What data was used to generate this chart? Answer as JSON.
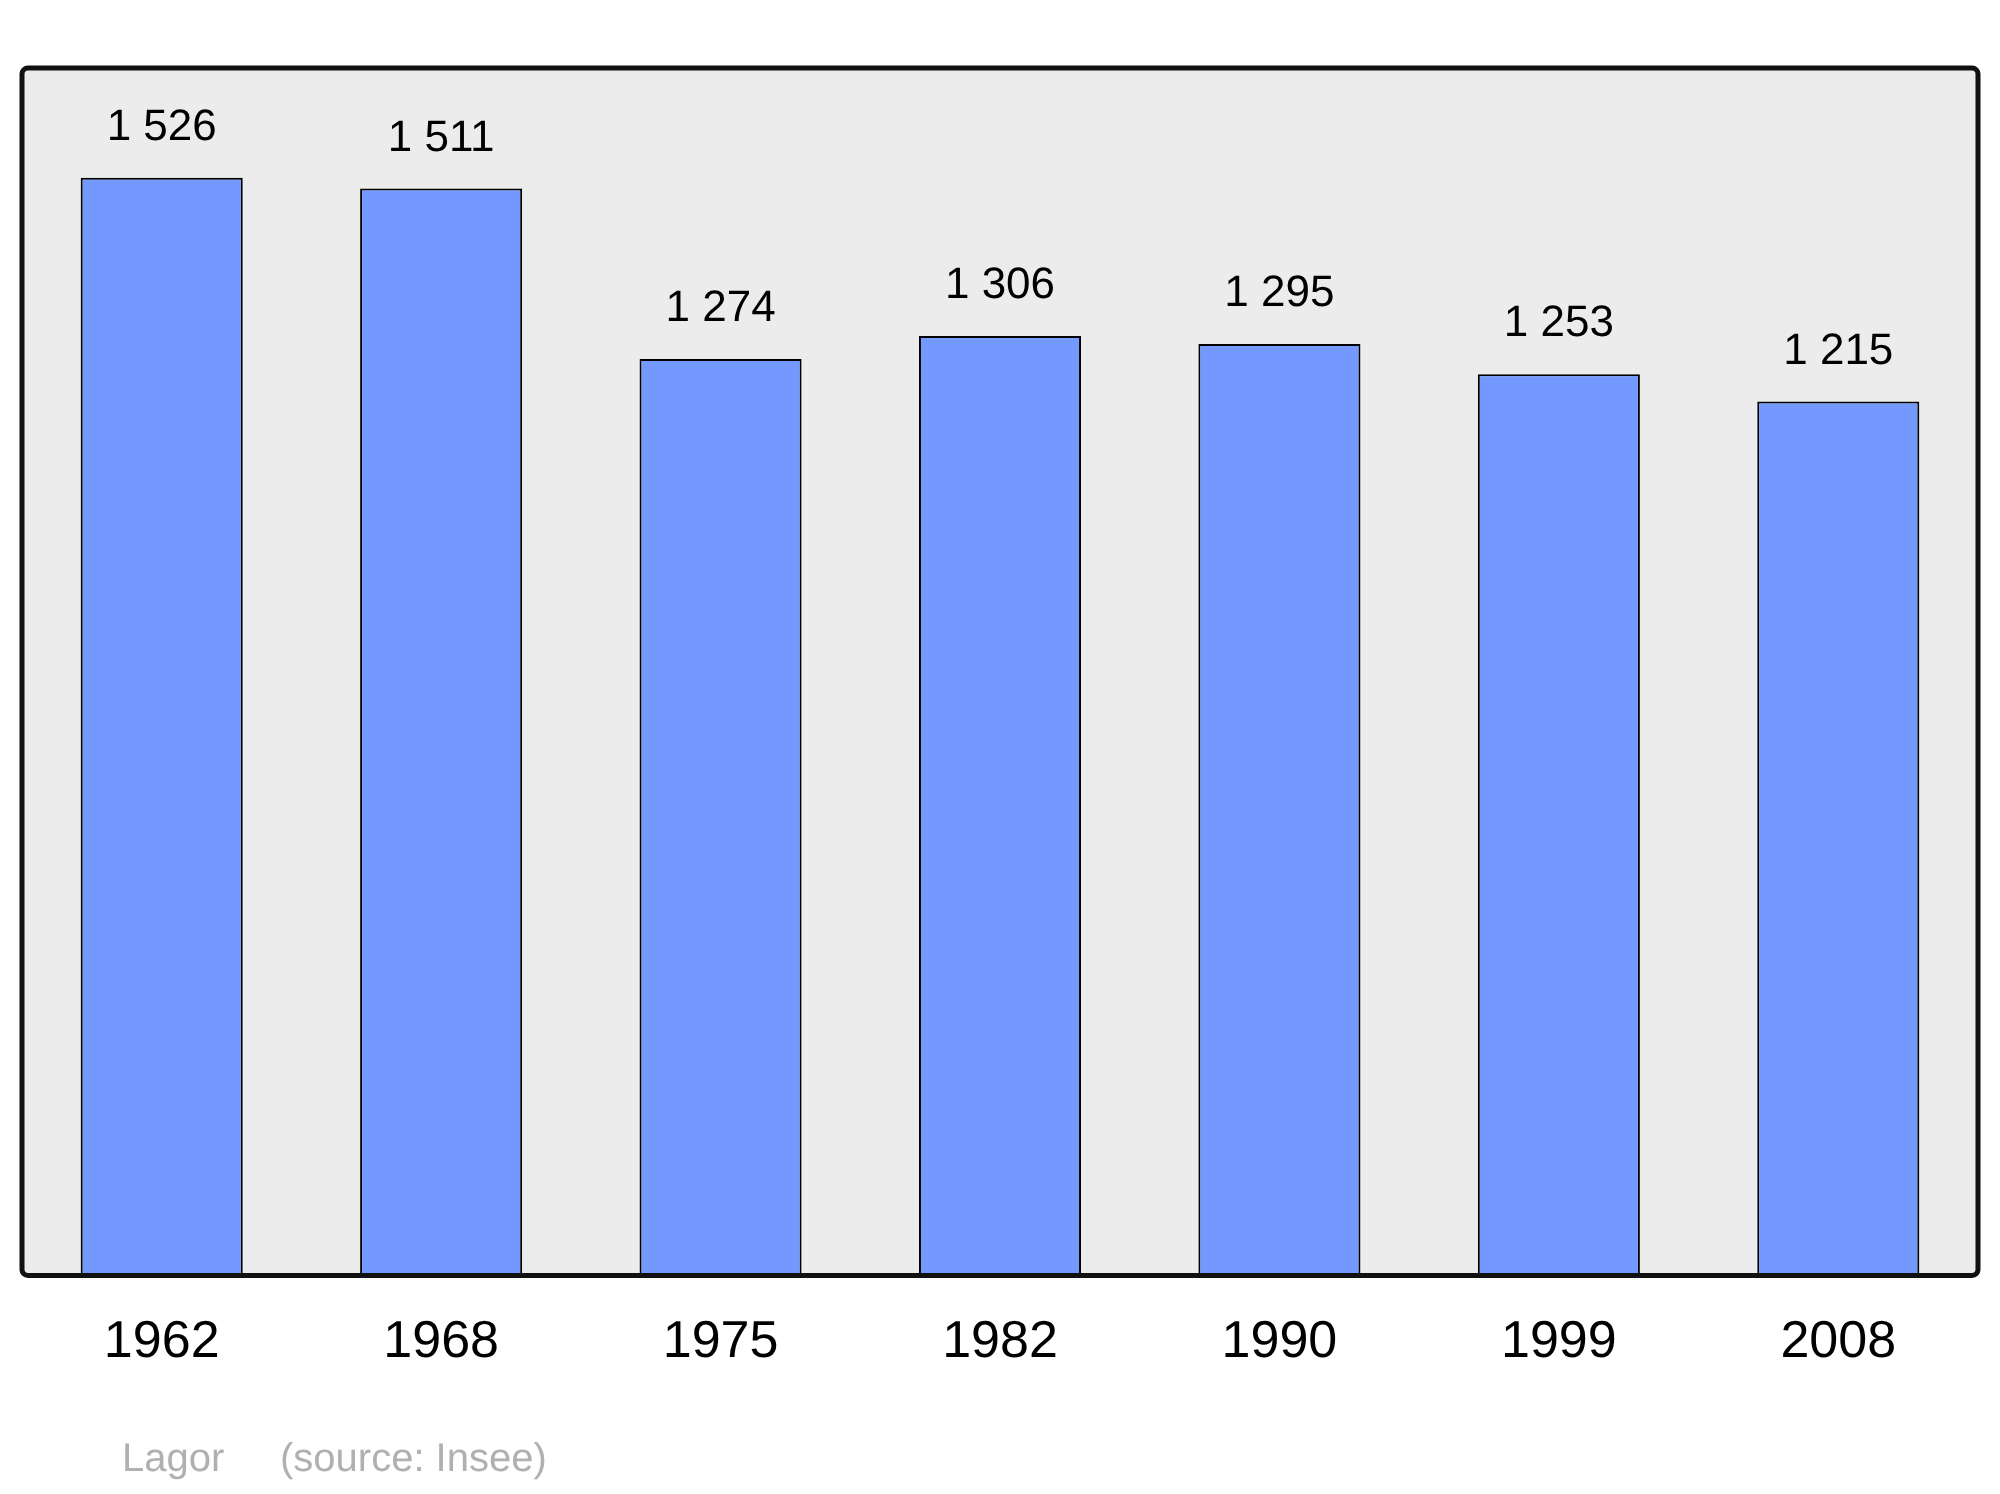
{
  "chart_data": {
    "type": "bar",
    "categories": [
      "1962",
      "1968",
      "1975",
      "1982",
      "1990",
      "1999",
      "2008"
    ],
    "values": [
      1526,
      1511,
      1274,
      1306,
      1295,
      1253,
      1215
    ],
    "value_labels": [
      "1 526",
      "1 511",
      "1 274",
      "1 306",
      "1 295",
      "1 253",
      "1 215"
    ],
    "color": "#7399ff",
    "grid": false,
    "legend": false,
    "tick_labels": "x",
    "annotations": [
      "Lagor",
      "(source: Insee)"
    ]
  }
}
